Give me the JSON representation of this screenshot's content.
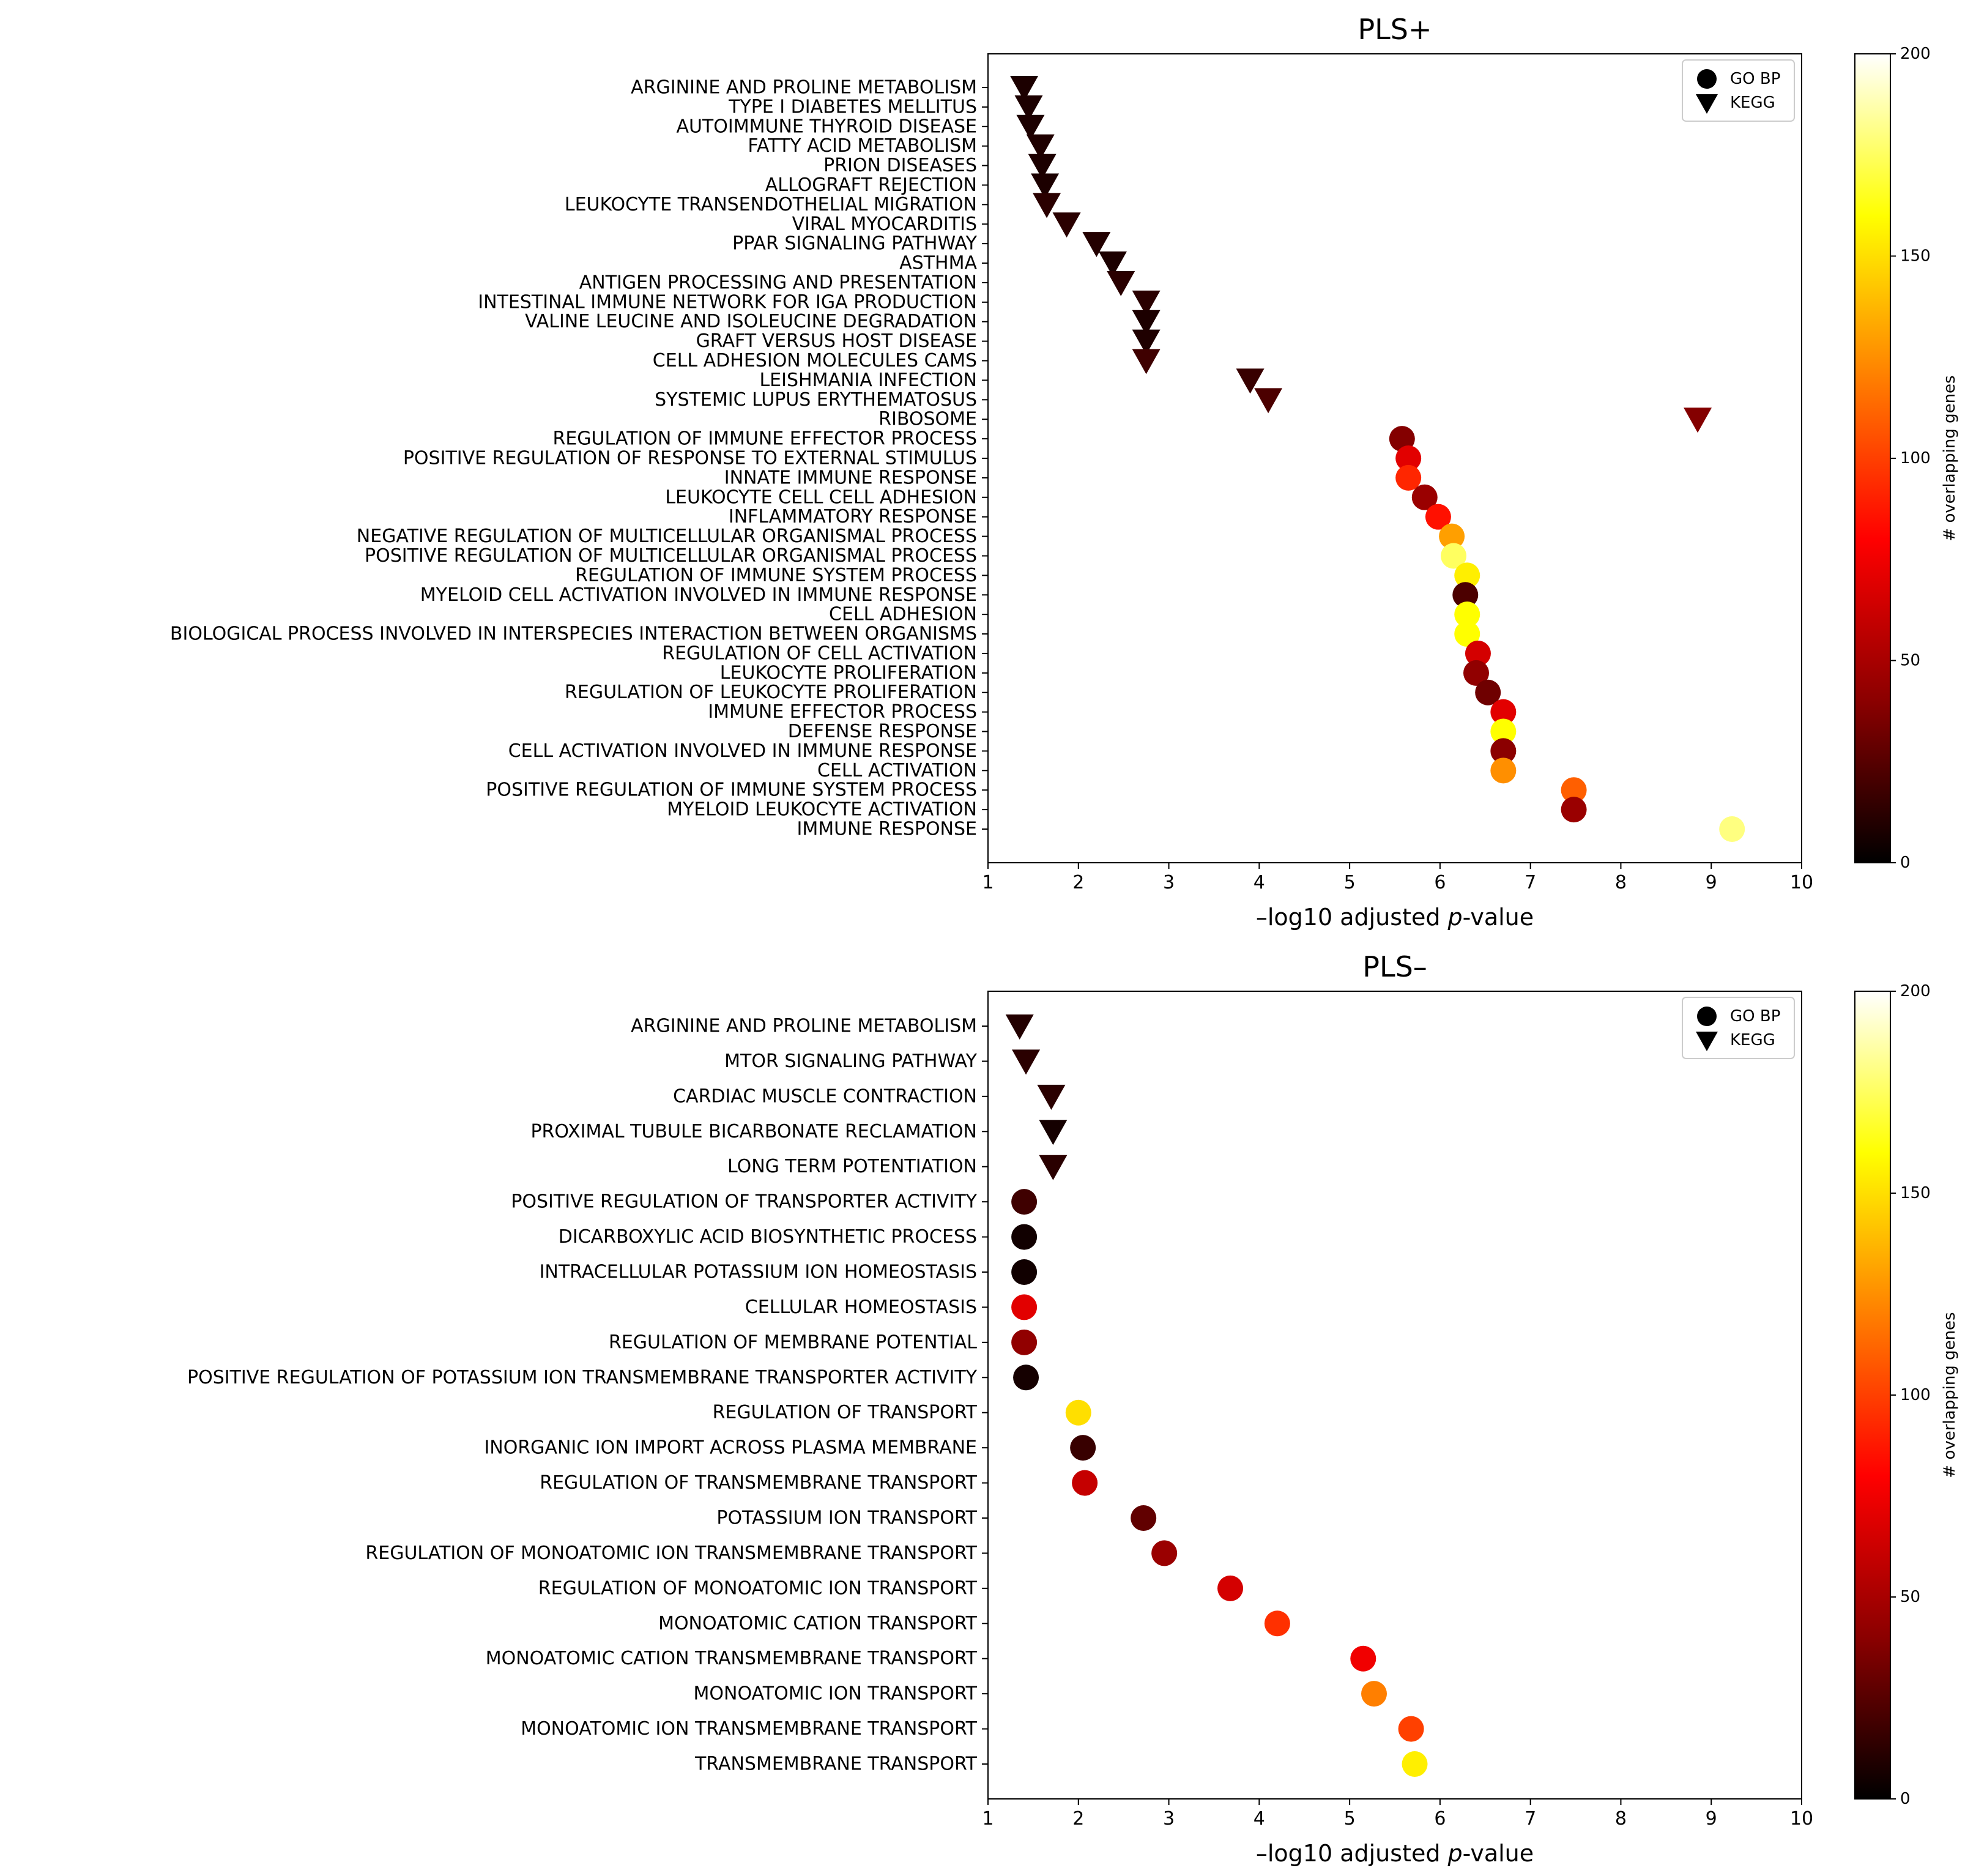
{
  "colormap_stops": [
    "#000000",
    "#8b0000",
    "#ff0000",
    "#ff7f00",
    "#ffff00",
    "#ffffff"
  ],
  "chart_data": [
    {
      "type": "scatter",
      "title": "PLS+",
      "xlabel_prefix": "–log10 adjusted ",
      "xlabel_italic": "p",
      "xlabel_suffix": "-value",
      "xlim": [
        1,
        10
      ],
      "xticks": [
        1,
        2,
        3,
        4,
        5,
        6,
        7,
        8,
        9,
        10
      ],
      "grid": false,
      "legend": {
        "position": "top-right",
        "entries": [
          {
            "label": "GO BP",
            "marker": "circle"
          },
          {
            "label": "KEGG",
            "marker": "triangle-down"
          }
        ]
      },
      "colorbar": {
        "label": "# overlapping genes",
        "range": [
          0,
          200
        ],
        "ticks": [
          0,
          50,
          100,
          150,
          200
        ]
      },
      "points": [
        {
          "label": "ARGININE AND PROLINE METABOLISM",
          "x": 1.4,
          "marker": "triangle-down",
          "genes": 8
        },
        {
          "label": "TYPE I DIABETES MELLITUS",
          "x": 1.45,
          "marker": "triangle-down",
          "genes": 8
        },
        {
          "label": "AUTOIMMUNE THYROID DISEASE",
          "x": 1.47,
          "marker": "triangle-down",
          "genes": 8
        },
        {
          "label": "FATTY ACID METABOLISM",
          "x": 1.58,
          "marker": "triangle-down",
          "genes": 9
        },
        {
          "label": "PRION DISEASES",
          "x": 1.6,
          "marker": "triangle-down",
          "genes": 8
        },
        {
          "label": "ALLOGRAFT REJECTION",
          "x": 1.63,
          "marker": "triangle-down",
          "genes": 8
        },
        {
          "label": "LEUKOCYTE TRANSENDOTHELIAL MIGRATION",
          "x": 1.65,
          "marker": "triangle-down",
          "genes": 12
        },
        {
          "label": "VIRAL MYOCARDITIS",
          "x": 1.87,
          "marker": "triangle-down",
          "genes": 12
        },
        {
          "label": "PPAR SIGNALING PATHWAY",
          "x": 2.2,
          "marker": "triangle-down",
          "genes": 10
        },
        {
          "label": "ASTHMA",
          "x": 2.38,
          "marker": "triangle-down",
          "genes": 8
        },
        {
          "label": "ANTIGEN PROCESSING AND PRESENTATION",
          "x": 2.47,
          "marker": "triangle-down",
          "genes": 12
        },
        {
          "label": "INTESTINAL IMMUNE NETWORK FOR IGA PRODUCTION",
          "x": 2.75,
          "marker": "triangle-down",
          "genes": 12
        },
        {
          "label": "VALINE LEUCINE AND ISOLEUCINE DEGRADATION",
          "x": 2.75,
          "marker": "triangle-down",
          "genes": 8
        },
        {
          "label": "GRAFT VERSUS HOST DISEASE",
          "x": 2.75,
          "marker": "triangle-down",
          "genes": 9
        },
        {
          "label": "CELL ADHESION MOLECULES CAMS",
          "x": 2.75,
          "marker": "triangle-down",
          "genes": 18
        },
        {
          "label": "LEISHMANIA INFECTION",
          "x": 3.9,
          "marker": "triangle-down",
          "genes": 16
        },
        {
          "label": "SYSTEMIC LUPUS ERYTHEMATOSUS",
          "x": 4.1,
          "marker": "triangle-down",
          "genes": 22
        },
        {
          "label": "RIBOSOME",
          "x": 8.85,
          "marker": "triangle-down",
          "genes": 38
        },
        {
          "label": "REGULATION OF IMMUNE EFFECTOR PROCESS",
          "x": 5.58,
          "marker": "circle",
          "genes": 38
        },
        {
          "label": "POSITIVE REGULATION OF RESPONSE TO EXTERNAL STIMULUS",
          "x": 5.65,
          "marker": "circle",
          "genes": 70
        },
        {
          "label": "INNATE IMMUNE RESPONSE",
          "x": 5.65,
          "marker": "circle",
          "genes": 92
        },
        {
          "label": "LEUKOCYTE CELL CELL ADHESION",
          "x": 5.83,
          "marker": "circle",
          "genes": 45
        },
        {
          "label": "INFLAMMATORY RESPONSE",
          "x": 5.98,
          "marker": "circle",
          "genes": 85
        },
        {
          "label": "NEGATIVE REGULATION OF MULTICELLULAR ORGANISMAL PROCESS",
          "x": 6.13,
          "marker": "circle",
          "genes": 130
        },
        {
          "label": "POSITIVE REGULATION OF MULTICELLULAR ORGANISMAL PROCESS",
          "x": 6.15,
          "marker": "circle",
          "genes": 175
        },
        {
          "label": "REGULATION OF IMMUNE SYSTEM PROCESS",
          "x": 6.3,
          "marker": "circle",
          "genes": 155
        },
        {
          "label": "MYELOID CELL ACTIVATION INVOLVED IN IMMUNE RESPONSE",
          "x": 6.28,
          "marker": "circle",
          "genes": 22
        },
        {
          "label": "CELL ADHESION",
          "x": 6.3,
          "marker": "circle",
          "genes": 160
        },
        {
          "label": "BIOLOGICAL PROCESS INVOLVED IN INTERSPECIES INTERACTION BETWEEN ORGANISMS",
          "x": 6.3,
          "marker": "circle",
          "genes": 160
        },
        {
          "label": "REGULATION OF CELL ACTIVATION",
          "x": 6.42,
          "marker": "circle",
          "genes": 65
        },
        {
          "label": "LEUKOCYTE PROLIFERATION",
          "x": 6.4,
          "marker": "circle",
          "genes": 42
        },
        {
          "label": "REGULATION OF LEUKOCYTE PROLIFERATION",
          "x": 6.53,
          "marker": "circle",
          "genes": 32
        },
        {
          "label": "IMMUNE EFFECTOR PROCESS",
          "x": 6.7,
          "marker": "circle",
          "genes": 70
        },
        {
          "label": "DEFENSE RESPONSE",
          "x": 6.7,
          "marker": "circle",
          "genes": 160
        },
        {
          "label": "CELL ACTIVATION INVOLVED IN IMMUNE RESPONSE",
          "x": 6.7,
          "marker": "circle",
          "genes": 40
        },
        {
          "label": "CELL ACTIVATION",
          "x": 6.7,
          "marker": "circle",
          "genes": 125
        },
        {
          "label": "POSITIVE REGULATION OF IMMUNE SYSTEM PROCESS",
          "x": 7.48,
          "marker": "circle",
          "genes": 110
        },
        {
          "label": "MYELOID LEUKOCYTE ACTIVATION",
          "x": 7.48,
          "marker": "circle",
          "genes": 45
        },
        {
          "label": "IMMUNE RESPONSE",
          "x": 9.23,
          "marker": "circle",
          "genes": 180
        }
      ]
    },
    {
      "type": "scatter",
      "title": "PLS–",
      "xlabel_prefix": "–log10 adjusted ",
      "xlabel_italic": "p",
      "xlabel_suffix": "-value",
      "xlim": [
        1,
        10
      ],
      "xticks": [
        1,
        2,
        3,
        4,
        5,
        6,
        7,
        8,
        9,
        10
      ],
      "grid": false,
      "legend": {
        "position": "top-right",
        "entries": [
          {
            "label": "GO BP",
            "marker": "circle"
          },
          {
            "label": "KEGG",
            "marker": "triangle-down"
          }
        ]
      },
      "colorbar": {
        "label": "# overlapping genes",
        "range": [
          0,
          200
        ],
        "ticks": [
          0,
          50,
          100,
          150,
          200
        ]
      },
      "points": [
        {
          "label": "ARGININE AND PROLINE METABOLISM",
          "x": 1.35,
          "marker": "triangle-down",
          "genes": 10
        },
        {
          "label": "MTOR SIGNALING PATHWAY",
          "x": 1.42,
          "marker": "triangle-down",
          "genes": 12
        },
        {
          "label": "CARDIAC MUSCLE CONTRACTION",
          "x": 1.7,
          "marker": "triangle-down",
          "genes": 12
        },
        {
          "label": "PROXIMAL TUBULE BICARBONATE RECLAMATION",
          "x": 1.72,
          "marker": "triangle-down",
          "genes": 6
        },
        {
          "label": "LONG TERM POTENTIATION",
          "x": 1.72,
          "marker": "triangle-down",
          "genes": 12
        },
        {
          "label": "POSITIVE REGULATION OF TRANSPORTER ACTIVITY",
          "x": 1.4,
          "marker": "circle",
          "genes": 18
        },
        {
          "label": "DICARBOXYLIC ACID BIOSYNTHETIC PROCESS",
          "x": 1.4,
          "marker": "circle",
          "genes": 5
        },
        {
          "label": "INTRACELLULAR POTASSIUM ION HOMEOSTASIS",
          "x": 1.4,
          "marker": "circle",
          "genes": 5
        },
        {
          "label": "CELLULAR HOMEOSTASIS",
          "x": 1.4,
          "marker": "circle",
          "genes": 70
        },
        {
          "label": "REGULATION OF MEMBRANE POTENTIAL",
          "x": 1.4,
          "marker": "circle",
          "genes": 42
        },
        {
          "label": "POSITIVE REGULATION OF POTASSIUM ION TRANSMEMBRANE TRANSPORTER ACTIVITY",
          "x": 1.42,
          "marker": "circle",
          "genes": 6
        },
        {
          "label": "REGULATION OF TRANSPORT",
          "x": 2.0,
          "marker": "circle",
          "genes": 150
        },
        {
          "label": "INORGANIC ION IMPORT ACROSS PLASMA MEMBRANE",
          "x": 2.05,
          "marker": "circle",
          "genes": 16
        },
        {
          "label": "REGULATION OF TRANSMEMBRANE TRANSPORT",
          "x": 2.07,
          "marker": "circle",
          "genes": 60
        },
        {
          "label": "POTASSIUM ION TRANSPORT",
          "x": 2.72,
          "marker": "circle",
          "genes": 28
        },
        {
          "label": "REGULATION OF MONOATOMIC ION TRANSMEMBRANE TRANSPORT",
          "x": 2.95,
          "marker": "circle",
          "genes": 45
        },
        {
          "label": "REGULATION OF MONOATOMIC ION TRANSPORT",
          "x": 3.68,
          "marker": "circle",
          "genes": 65
        },
        {
          "label": "MONOATOMIC CATION TRANSPORT",
          "x": 4.2,
          "marker": "circle",
          "genes": 95
        },
        {
          "label": "MONOATOMIC CATION TRANSMEMBRANE TRANSPORT",
          "x": 5.15,
          "marker": "circle",
          "genes": 75
        },
        {
          "label": "MONOATOMIC ION TRANSPORT",
          "x": 5.27,
          "marker": "circle",
          "genes": 120
        },
        {
          "label": "MONOATOMIC ION TRANSMEMBRANE TRANSPORT",
          "x": 5.68,
          "marker": "circle",
          "genes": 100
        },
        {
          "label": "TRANSMEMBRANE TRANSPORT",
          "x": 5.72,
          "marker": "circle",
          "genes": 155
        }
      ]
    }
  ]
}
